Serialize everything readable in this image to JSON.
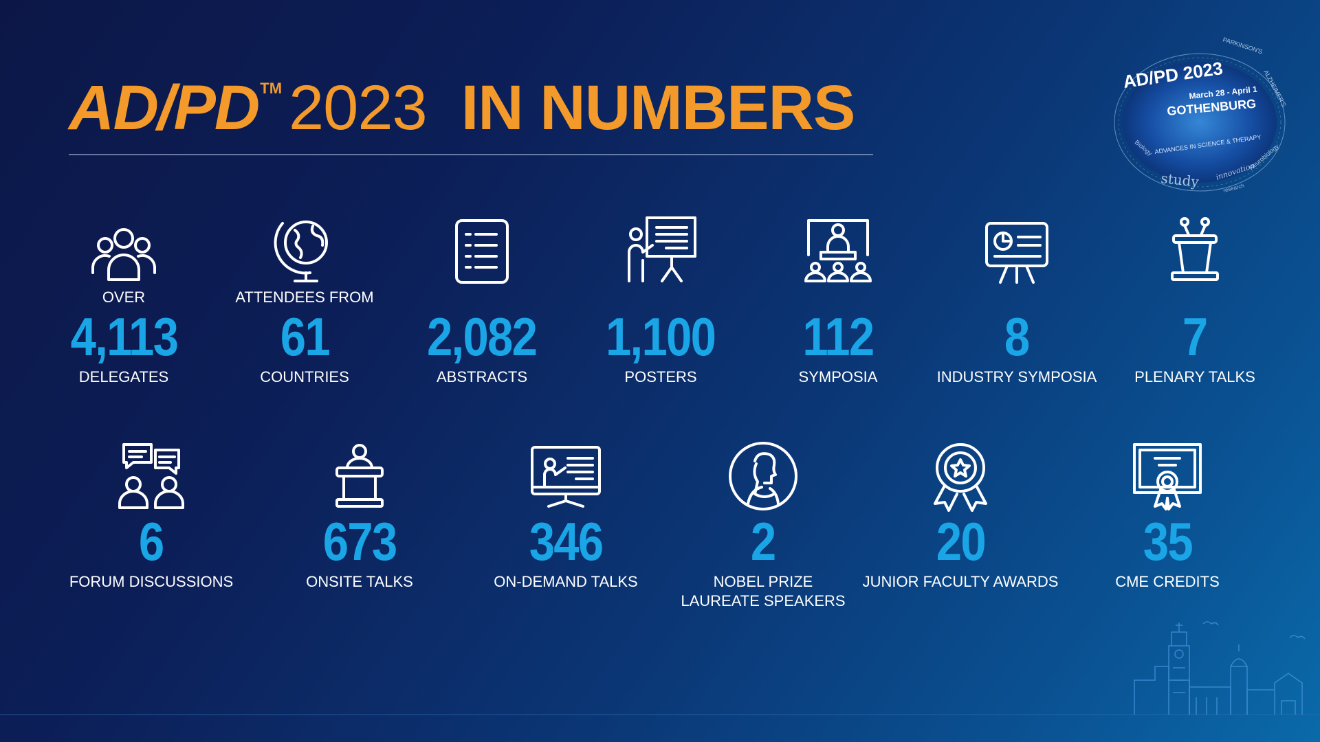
{
  "header": {
    "brand": "AD/PD",
    "tm": "TM",
    "year": "2023",
    "rest": "IN NUMBERS"
  },
  "badge": {
    "title": "AD/PD 2023",
    "dates": "March 28 - April 1",
    "city": "GOTHENBURG",
    "ring": "ADVANCES IN SCIENCE & THERAPY",
    "word_study": "study",
    "word_parkinsons": "PARKINSON'S",
    "word_alzheimers": "ALZHEIMER'S",
    "word_neurobiology": "Neurobiology",
    "word_biology": "Biology",
    "word_innovation": "innovation",
    "word_research": "research"
  },
  "stats_row1": [
    {
      "icon": "group-icon",
      "pre": "OVER",
      "num": "4,113",
      "label": "DELEGATES"
    },
    {
      "icon": "globe-icon",
      "pre": "ATTENDEES FROM",
      "num": "61",
      "label": "COUNTRIES"
    },
    {
      "icon": "document-icon",
      "pre": "",
      "num": "2,082",
      "label": "ABSTRACTS"
    },
    {
      "icon": "presenter-board-icon",
      "pre": "",
      "num": "1,100",
      "label": "POSTERS"
    },
    {
      "icon": "panel-audience-icon",
      "pre": "",
      "num": "112",
      "label": "SYMPOSIA"
    },
    {
      "icon": "chart-screen-icon",
      "pre": "",
      "num": "8",
      "label": "INDUSTRY SYMPOSIA"
    },
    {
      "icon": "podium-icon",
      "pre": "",
      "num": "7",
      "label": "PLENARY TALKS"
    }
  ],
  "stats_row2": [
    {
      "icon": "discussion-icon",
      "num": "6",
      "label": "FORUM DISCUSSIONS"
    },
    {
      "icon": "speaker-podium-icon",
      "num": "673",
      "label": "ONSITE TALKS"
    },
    {
      "icon": "monitor-presenter-icon",
      "num": "346",
      "label": "ON-DEMAND TALKS"
    },
    {
      "icon": "laureate-portrait-icon",
      "num": "2",
      "label": "NOBEL PRIZE LAUREATE SPEAKERS"
    },
    {
      "icon": "award-ribbon-icon",
      "num": "20",
      "label": "JUNIOR FACULTY AWARDS"
    },
    {
      "icon": "certificate-icon",
      "num": "35",
      "label": "CME CREDITS"
    }
  ],
  "colors": {
    "accent_orange": "#f39a2b",
    "number_blue": "#1aa6e6"
  }
}
